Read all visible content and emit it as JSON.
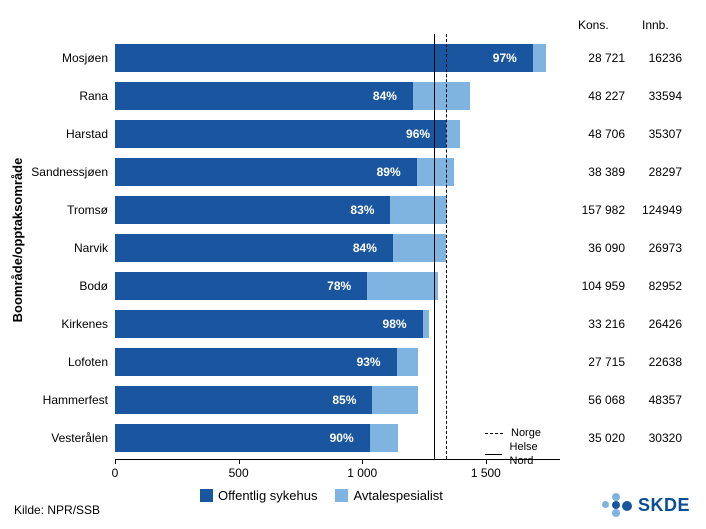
{
  "chart": {
    "type": "stacked-bar-horizontal",
    "y_axis_title": "Boområde/opptaksområde",
    "x_axis": {
      "min": 0,
      "max": 1800,
      "ticks": [
        0,
        500,
        1000,
        1500
      ]
    },
    "colors": {
      "series1": "#1a559f",
      "series2": "#7fb3e0",
      "background": "#ffffff",
      "text": "#000000"
    },
    "reference_lines": {
      "solid": {
        "label": "Helse Nord",
        "value": 1290
      },
      "dashed": {
        "label": "Norge",
        "value": 1340
      }
    },
    "data_columns": {
      "kons": "Kons.",
      "innb": "Innb."
    },
    "rows": [
      {
        "label": "Mosjøen",
        "v1": 1690,
        "v2": 1742,
        "pct": "97%",
        "kons": "28 721",
        "innb": "16236"
      },
      {
        "label": "Rana",
        "v1": 1205,
        "v2": 1436,
        "pct": "84%",
        "kons": "48 227",
        "innb": "33594"
      },
      {
        "label": "Harstad",
        "v1": 1339,
        "v2": 1394,
        "pct": "96%",
        "kons": "48 706",
        "innb": "35307"
      },
      {
        "label": "Sandnessjøen",
        "v1": 1220,
        "v2": 1370,
        "pct": "89%",
        "kons": "38 389",
        "innb": "28297"
      },
      {
        "label": "Tromsø",
        "v1": 1114,
        "v2": 1342,
        "pct": "83%",
        "kons": "157 982",
        "innb": "124949"
      },
      {
        "label": "Narvik",
        "v1": 1124,
        "v2": 1339,
        "pct": "84%",
        "kons": "36 090",
        "innb": "26973"
      },
      {
        "label": "Bodø",
        "v1": 1020,
        "v2": 1308,
        "pct": "78%",
        "kons": "104 959",
        "innb": "82952"
      },
      {
        "label": "Kirkenes",
        "v1": 1244,
        "v2": 1270,
        "pct": "98%",
        "kons": "33 216",
        "innb": "26426"
      },
      {
        "label": "Lofoten",
        "v1": 1139,
        "v2": 1224,
        "pct": "93%",
        "kons": "27 715",
        "innb": "22638"
      },
      {
        "label": "Hammerfest",
        "v1": 1041,
        "v2": 1224,
        "pct": "85%",
        "kons": "56 068",
        "innb": "48357"
      },
      {
        "label": "Vesterålen",
        "v1": 1030,
        "v2": 1144,
        "pct": "90%",
        "kons": "35 020",
        "innb": "30320"
      }
    ],
    "legend": {
      "series1": "Offentlig sykehus",
      "series2": "Avtalespesialist"
    },
    "source": "Kilde: NPR/SSB",
    "logo_text": "SKDE",
    "logo_colors": {
      "dark": "#1a559f",
      "light": "#7fb3e0"
    }
  }
}
